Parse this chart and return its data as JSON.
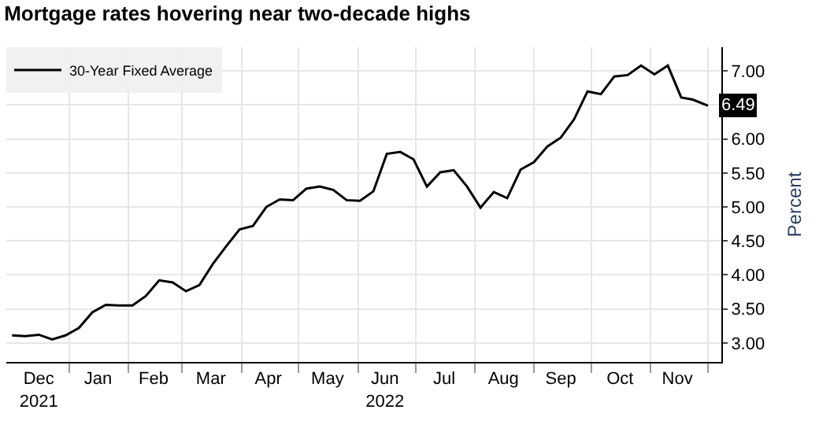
{
  "chart_data": {
    "type": "line",
    "title": "Mortgage rates hovering near two-decade highs",
    "ylabel": "Percent",
    "x": [
      "2021-12-02",
      "2021-12-09",
      "2021-12-16",
      "2021-12-23",
      "2021-12-30",
      "2022-01-06",
      "2022-01-13",
      "2022-01-20",
      "2022-01-27",
      "2022-02-03",
      "2022-02-10",
      "2022-02-17",
      "2022-02-24",
      "2022-03-03",
      "2022-03-10",
      "2022-03-17",
      "2022-03-24",
      "2022-03-31",
      "2022-04-07",
      "2022-04-14",
      "2022-04-21",
      "2022-04-28",
      "2022-05-05",
      "2022-05-12",
      "2022-05-19",
      "2022-05-26",
      "2022-06-02",
      "2022-06-09",
      "2022-06-16",
      "2022-06-23",
      "2022-06-30",
      "2022-07-07",
      "2022-07-14",
      "2022-07-21",
      "2022-07-28",
      "2022-08-04",
      "2022-08-11",
      "2022-08-18",
      "2022-08-25",
      "2022-09-01",
      "2022-09-08",
      "2022-09-15",
      "2022-09-22",
      "2022-09-29",
      "2022-10-06",
      "2022-10-13",
      "2022-10-20",
      "2022-10-27",
      "2022-11-03",
      "2022-11-10",
      "2022-11-17",
      "2022-11-23",
      "2022-12-01"
    ],
    "series": [
      {
        "name": "30-Year Fixed Average",
        "color": "#000000",
        "values": [
          3.11,
          3.1,
          3.12,
          3.05,
          3.11,
          3.22,
          3.45,
          3.56,
          3.55,
          3.55,
          3.69,
          3.92,
          3.89,
          3.76,
          3.85,
          4.16,
          4.42,
          4.67,
          4.72,
          5.0,
          5.11,
          5.1,
          5.27,
          5.3,
          5.25,
          5.1,
          5.09,
          5.23,
          5.78,
          5.81,
          5.7,
          5.3,
          5.51,
          5.54,
          5.3,
          4.99,
          5.22,
          5.13,
          5.55,
          5.66,
          5.89,
          6.02,
          6.29,
          6.7,
          6.66,
          6.92,
          6.94,
          7.08,
          6.95,
          7.08,
          6.61,
          6.58,
          6.49
        ],
        "value_labels": [
          null,
          null,
          null,
          null,
          null,
          null,
          null,
          null,
          null,
          null,
          null,
          null,
          null,
          null,
          null,
          null,
          null,
          null,
          null,
          null,
          null,
          null,
          null,
          null,
          null,
          null,
          null,
          null,
          null,
          null,
          null,
          null,
          null,
          null,
          null,
          null,
          null,
          null,
          null,
          null,
          null,
          null,
          null,
          null,
          null,
          null,
          null,
          null,
          null,
          null,
          null,
          null,
          "6.49"
        ]
      }
    ],
    "xlim": [
      "2021-11-29",
      "2022-12-08"
    ],
    "xticks": [
      {
        "value": "2021-12-16",
        "label": "Dec\n2021"
      },
      {
        "value": "2022-01-16",
        "label": "Jan"
      },
      {
        "value": "2022-02-14",
        "label": "Feb"
      },
      {
        "value": "2022-03-16",
        "label": "Mar"
      },
      {
        "value": "2022-04-15",
        "label": "Apr"
      },
      {
        "value": "2022-05-16",
        "label": "May"
      },
      {
        "value": "2022-06-15",
        "label": "Jun\n2022"
      },
      {
        "value": "2022-07-01",
        "label": null
      },
      {
        "value": "2022-07-16",
        "label": "Jul"
      },
      {
        "value": "2022-08-16",
        "label": "Aug"
      },
      {
        "value": "2022-09-15",
        "label": "Sep"
      },
      {
        "value": "2022-10-16",
        "label": "Oct"
      },
      {
        "value": "2022-11-15",
        "label": "Nov"
      },
      {
        "value": "2022-01-01",
        "label": null
      },
      {
        "value": "2022-02-01",
        "label": null
      },
      {
        "value": "2022-03-01",
        "label": null
      },
      {
        "value": "2022-04-01",
        "label": null
      },
      {
        "value": "2022-05-01",
        "label": null
      },
      {
        "value": "2022-06-01",
        "label": null
      },
      {
        "value": "2022-08-01",
        "label": null
      },
      {
        "value": "2022-09-01",
        "label": null
      },
      {
        "value": "2022-10-01",
        "label": null
      },
      {
        "value": "2022-11-01",
        "label": null
      },
      {
        "value": "2022-12-01",
        "label": null
      }
    ],
    "ylim": [
      2.72,
      7.35
    ],
    "yticks": [
      {
        "value": 3,
        "label": "3.00"
      },
      {
        "value": 3.5,
        "label": "3.50"
      },
      {
        "value": 4,
        "label": "4.00"
      },
      {
        "value": 4.5,
        "label": "4.50"
      },
      {
        "value": 5,
        "label": "5.00"
      },
      {
        "value": 5.5,
        "label": "5.50"
      },
      {
        "value": 6,
        "label": "6.00"
      },
      {
        "value": 6.5,
        "label": null
      },
      {
        "value": 7,
        "label": "7.00"
      }
    ],
    "grid": true,
    "legend": "top left",
    "line_style": "solid",
    "marker": "none"
  }
}
